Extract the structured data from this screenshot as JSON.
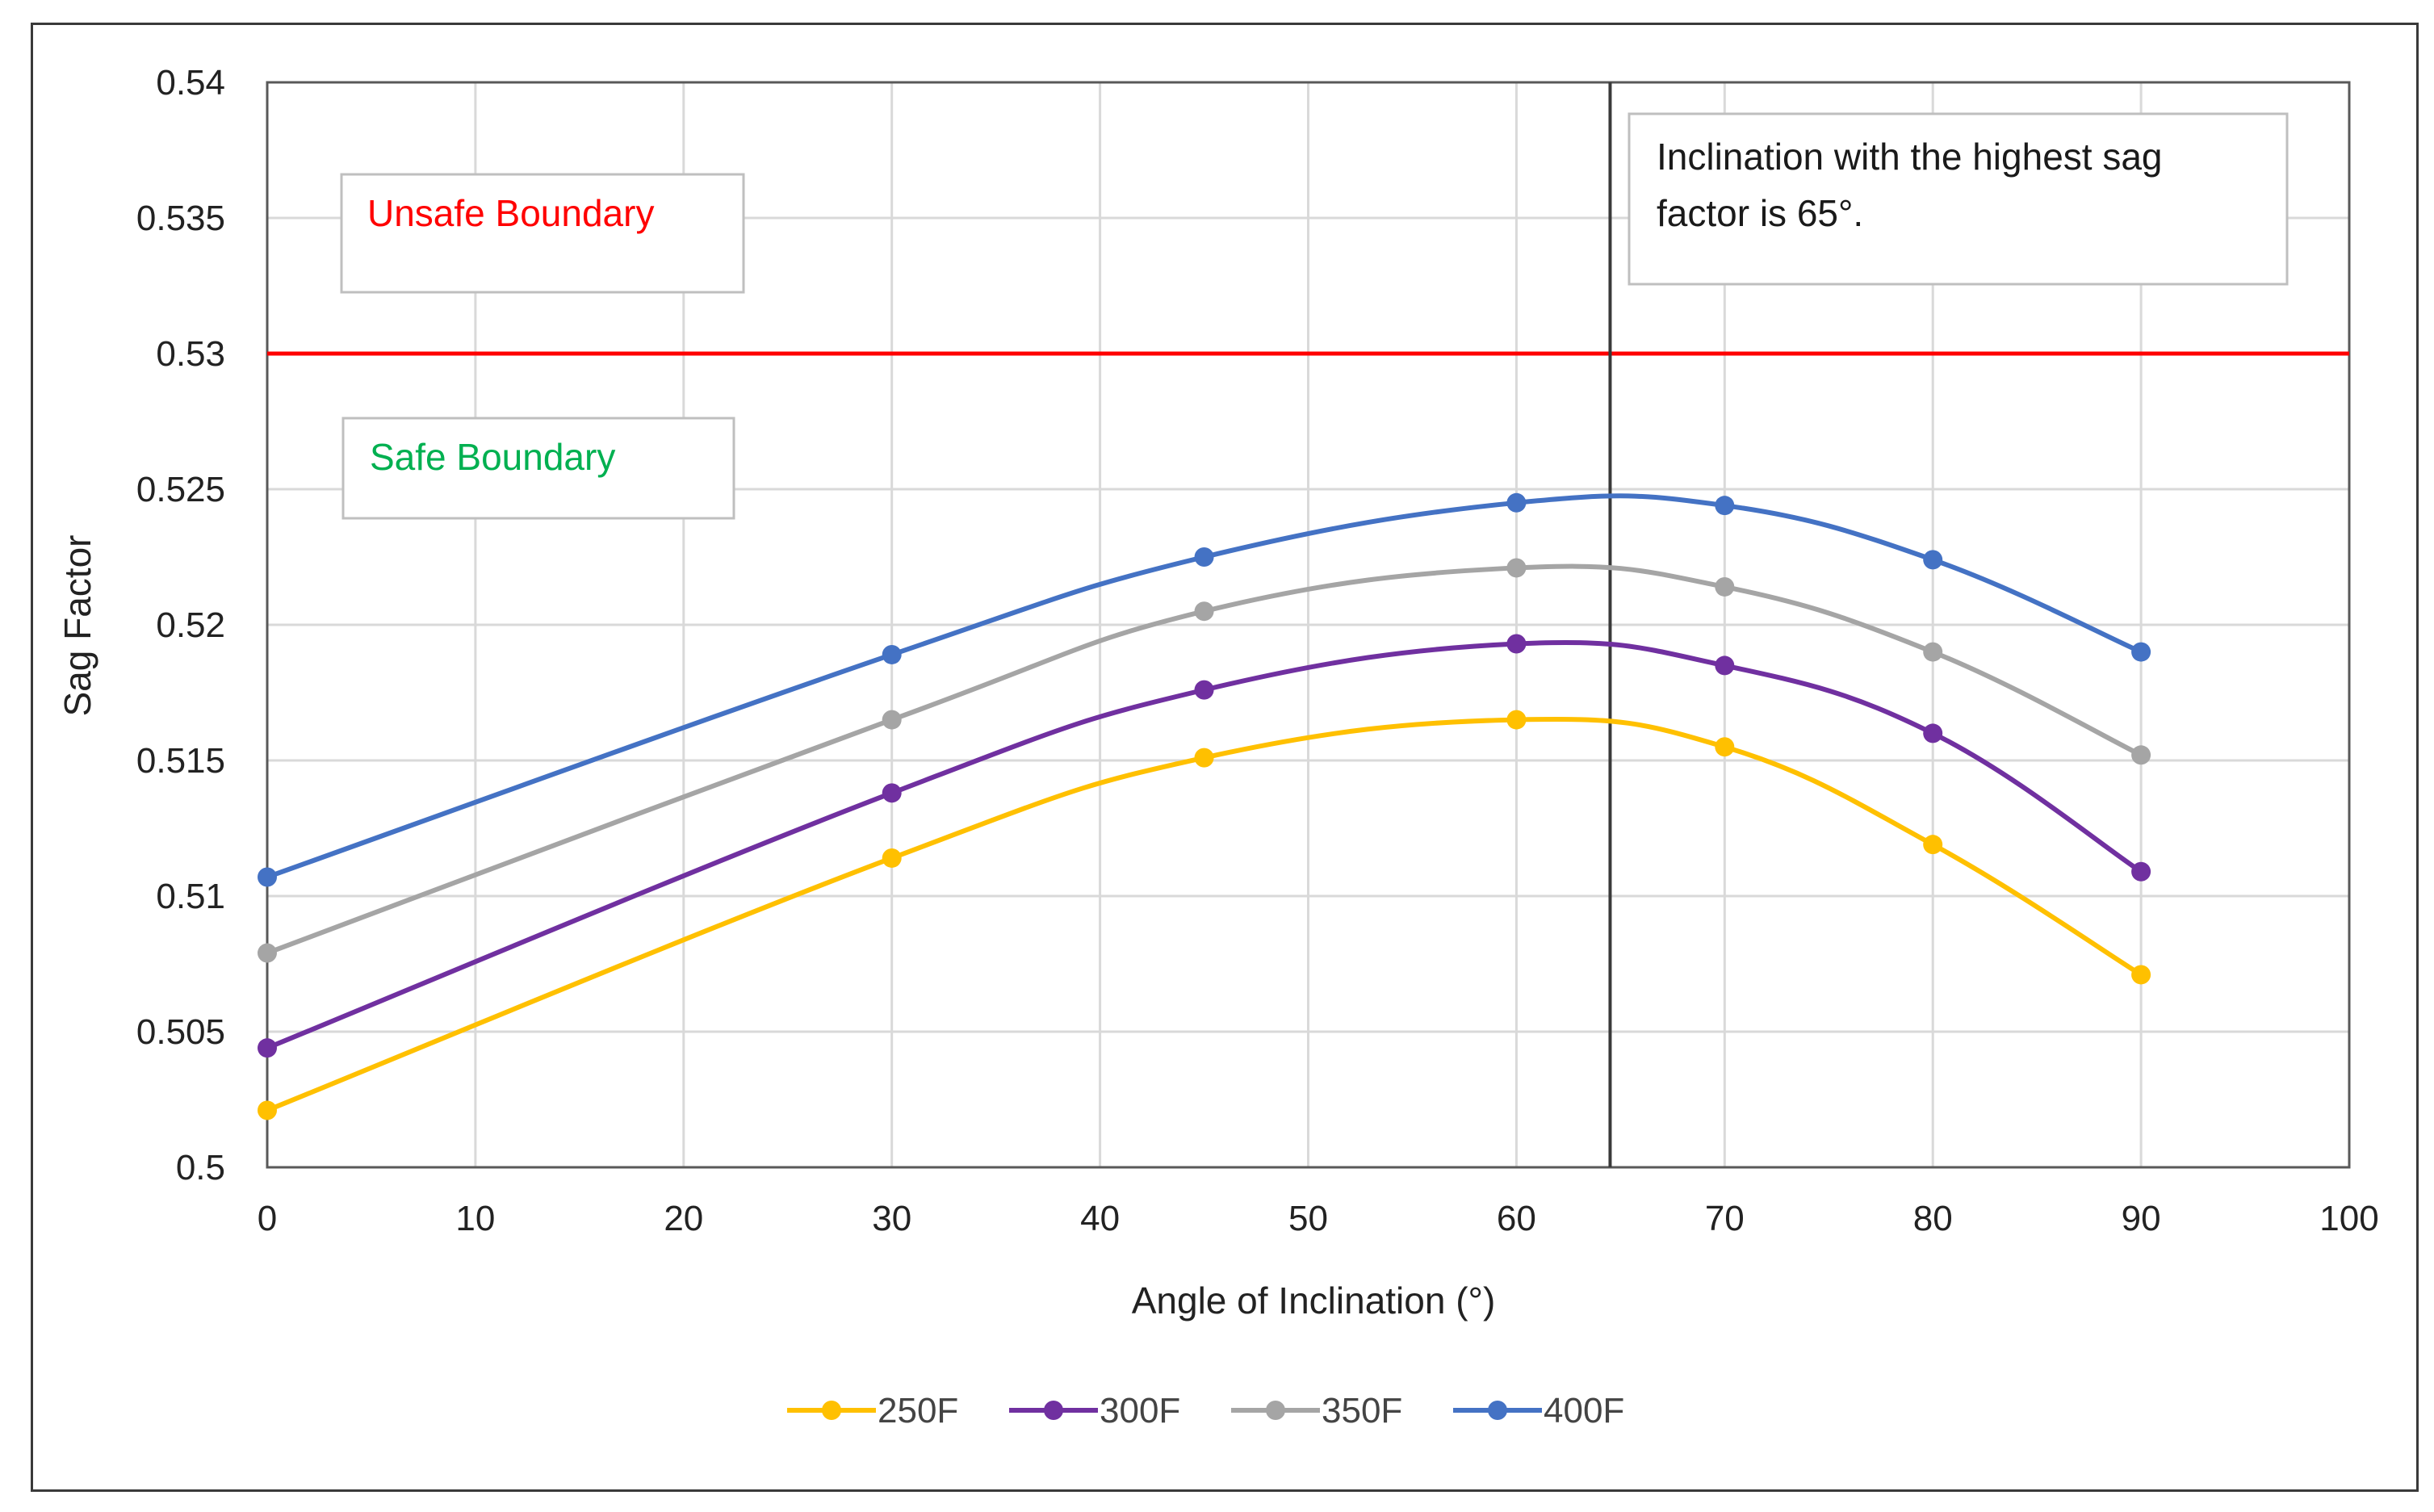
{
  "chart_data": {
    "type": "line",
    "title": "",
    "xlabel": "Angle of Inclination (°)",
    "ylabel": "Sag Factor",
    "xlim": [
      0,
      100
    ],
    "ylim": [
      0.5,
      0.54
    ],
    "x_ticks": [
      "0",
      "10",
      "20",
      "30",
      "40",
      "50",
      "60",
      "70",
      "80",
      "90",
      "100"
    ],
    "y_ticks": [
      "0.5",
      "0.505",
      "0.51",
      "0.515",
      "0.52",
      "0.525",
      "0.53",
      "0.535",
      "0.54"
    ],
    "grid": true,
    "legend_position": "bottom",
    "x": [
      0,
      30,
      45,
      60,
      70,
      80,
      90
    ],
    "series": [
      {
        "name": "250F",
        "color": "#FFC000",
        "values": [
          0.5021,
          0.5114,
          0.5151,
          0.5165,
          0.5155,
          0.5119,
          0.5071
        ]
      },
      {
        "name": "300F",
        "color": "#7030A0",
        "values": [
          0.5044,
          0.5138,
          0.5176,
          0.5193,
          0.5185,
          0.516,
          0.5109
        ]
      },
      {
        "name": "350F",
        "color": "#A5A5A5",
        "values": [
          0.5079,
          0.5165,
          0.5205,
          0.5221,
          0.5214,
          0.519,
          0.5152
        ]
      },
      {
        "name": "400F",
        "color": "#4472C4",
        "values": [
          0.5107,
          0.5189,
          0.5225,
          0.5245,
          0.5244,
          0.5224,
          0.519
        ]
      }
    ],
    "threshold": {
      "value": 0.53,
      "color": "#FF0000"
    },
    "marker_line": {
      "x": 64.5,
      "color": "#3A3A3A"
    },
    "annotations": {
      "unsafe": {
        "text": "Unsafe Boundary",
        "color": "#FF0000"
      },
      "safe": {
        "text": "Safe Boundary",
        "color": "#00B050"
      },
      "highest": {
        "line1": "Inclination with the highest sag",
        "line2": "factor is 65°.",
        "color": "#1a1a1a"
      }
    }
  }
}
